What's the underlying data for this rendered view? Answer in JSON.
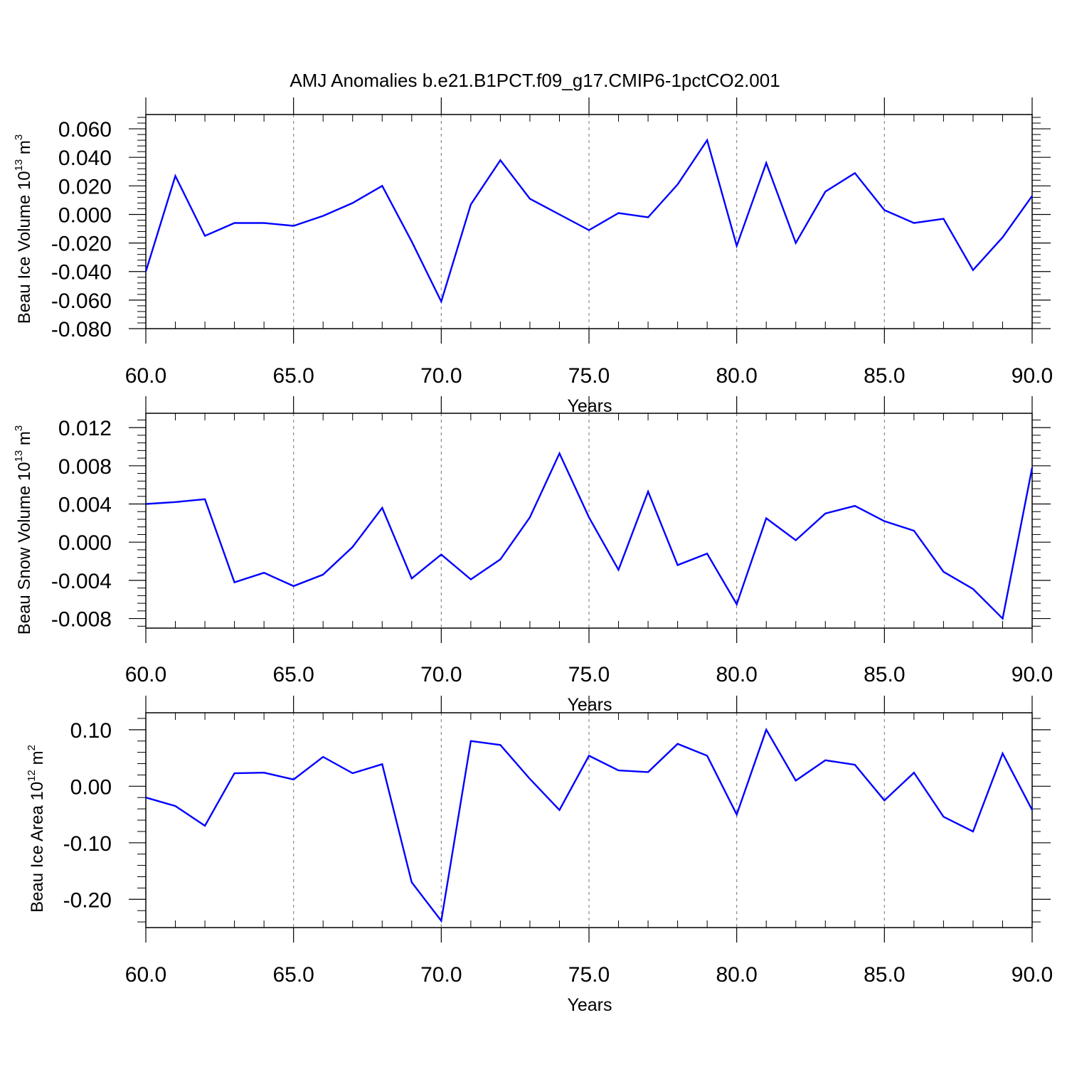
{
  "title": "AMJ Anomalies b.e21.B1PCT.f09_g17.CMIP6-1pctCO2.001",
  "series_color": "#0000ff",
  "chart_data": [
    {
      "type": "line",
      "xlabel": "Years",
      "ylabel": {
        "text": "Beau Ice Volume 10",
        "exp": "13",
        "unit": " m",
        "unit_exp": "3"
      },
      "xlim": [
        60,
        90
      ],
      "ylim": [
        -0.08,
        0.07
      ],
      "xticks": [
        60,
        65,
        70,
        75,
        80,
        85,
        90
      ],
      "xtick_labels": [
        "60.0",
        "65.0",
        "70.0",
        "75.0",
        "80.0",
        "85.0",
        "90.0"
      ],
      "yticks": [
        0.06,
        0.04,
        0.02,
        0.0,
        -0.02,
        -0.04,
        -0.06,
        -0.08
      ],
      "ytick_labels": [
        "0.060",
        "0.040",
        "0.020",
        "0.000",
        "-0.020",
        "-0.040",
        "-0.060",
        "-0.080"
      ],
      "grid": "vertical-dashed",
      "x": [
        60,
        61,
        62,
        63,
        64,
        65,
        66,
        67,
        68,
        69,
        70,
        71,
        72,
        73,
        74,
        75,
        76,
        77,
        78,
        79,
        80,
        81,
        82,
        83,
        84,
        85,
        86,
        87,
        88,
        89,
        90
      ],
      "values": [
        -0.04,
        0.027,
        -0.015,
        -0.006,
        -0.006,
        -0.008,
        -0.001,
        0.008,
        0.02,
        -0.019,
        -0.061,
        0.007,
        0.038,
        0.011,
        0.0,
        -0.011,
        0.001,
        -0.002,
        0.021,
        0.052,
        -0.022,
        0.036,
        -0.02,
        0.016,
        0.029,
        0.003,
        -0.006,
        -0.003,
        -0.039,
        -0.016,
        0.013
      ]
    },
    {
      "type": "line",
      "xlabel": "Years",
      "ylabel": {
        "text": "Beau Snow Volume 10",
        "exp": "13",
        "unit": " m",
        "unit_exp": "3"
      },
      "xlim": [
        60,
        90
      ],
      "ylim": [
        -0.009,
        0.0135
      ],
      "xticks": [
        60,
        65,
        70,
        75,
        80,
        85,
        90
      ],
      "xtick_labels": [
        "60.0",
        "65.0",
        "70.0",
        "75.0",
        "80.0",
        "85.0",
        "90.0"
      ],
      "yticks": [
        0.012,
        0.008,
        0.004,
        0.0,
        -0.004,
        -0.008
      ],
      "ytick_labels": [
        "0.012",
        "0.008",
        "0.004",
        "0.000",
        "-0.004",
        "-0.008"
      ],
      "grid": "vertical-dashed",
      "x": [
        60,
        61,
        62,
        63,
        64,
        65,
        66,
        67,
        68,
        69,
        70,
        71,
        72,
        73,
        74,
        75,
        76,
        77,
        78,
        79,
        80,
        81,
        82,
        83,
        84,
        85,
        86,
        87,
        88,
        89,
        90
      ],
      "values": [
        0.004,
        0.0042,
        0.0045,
        -0.0042,
        -0.0032,
        -0.0046,
        -0.0034,
        -0.0005,
        0.0036,
        -0.0038,
        -0.0013,
        -0.0039,
        -0.0018,
        0.0026,
        0.0093,
        0.0026,
        -0.0029,
        0.0053,
        -0.0024,
        -0.0012,
        -0.0065,
        0.0025,
        0.0002,
        0.003,
        0.0038,
        0.0022,
        0.0012,
        -0.0031,
        -0.0049,
        -0.008,
        0.0078
      ]
    },
    {
      "type": "line",
      "xlabel": "Years",
      "ylabel": {
        "text": "Beau Ice Area 10",
        "exp": "12",
        "unit": " m",
        "unit_exp": "2"
      },
      "xlim": [
        60,
        90
      ],
      "ylim": [
        -0.25,
        0.13
      ],
      "xticks": [
        60,
        65,
        70,
        75,
        80,
        85,
        90
      ],
      "xtick_labels": [
        "60.0",
        "65.0",
        "70.0",
        "75.0",
        "80.0",
        "85.0",
        "90.0"
      ],
      "yticks": [
        0.1,
        0.0,
        -0.1,
        -0.2
      ],
      "ytick_labels": [
        "0.10",
        "0.00",
        "-0.10",
        "-0.20"
      ],
      "grid": "vertical-dashed",
      "x": [
        60,
        61,
        62,
        63,
        64,
        65,
        66,
        67,
        68,
        69,
        70,
        71,
        72,
        73,
        74,
        75,
        76,
        77,
        78,
        79,
        80,
        81,
        82,
        83,
        84,
        85,
        86,
        87,
        88,
        89,
        90
      ],
      "values": [
        -0.02,
        -0.035,
        -0.07,
        0.023,
        0.024,
        0.012,
        0.052,
        0.023,
        0.039,
        -0.17,
        -0.238,
        0.08,
        0.073,
        0.013,
        -0.042,
        0.054,
        0.028,
        0.025,
        0.075,
        0.054,
        -0.05,
        0.1,
        0.01,
        0.046,
        0.038,
        -0.025,
        0.024,
        -0.054,
        -0.08,
        0.058,
        -0.042
      ]
    }
  ]
}
